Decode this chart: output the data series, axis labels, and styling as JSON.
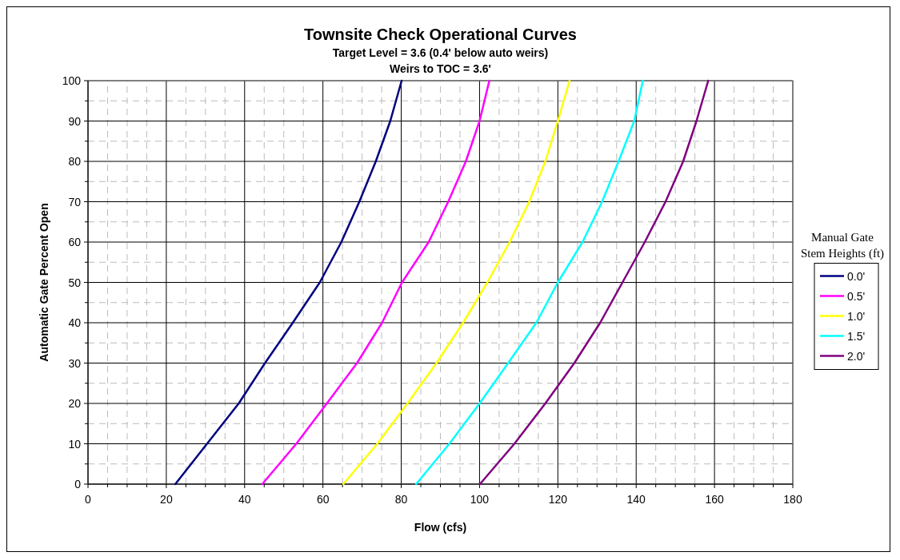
{
  "chart_data": {
    "type": "line",
    "title": "Townsite Check Operational Curves",
    "subtitle": "Target Level = 3.6 (0.4' below auto weirs)\nWeirs to TOC = 3.6'",
    "xlabel": "Flow (cfs)",
    "ylabel": "Automatic Gate Percent Open",
    "legend_title": "Manual Gate Stem Heights (ft)",
    "legend": "right",
    "grid": true,
    "line_style": "solid",
    "xlim": [
      0,
      180
    ],
    "xticks": [
      0,
      20,
      40,
      60,
      80,
      100,
      120,
      140,
      160,
      180
    ],
    "ylim": [
      0,
      100
    ],
    "yticks": [
      0,
      10,
      20,
      30,
      40,
      50,
      60,
      70,
      80,
      90,
      100
    ],
    "series": [
      {
        "name": "0.0'",
        "color": "#000080",
        "x": [
          22.3,
          30.4,
          38.5,
          45.2,
          52.3,
          59.2,
          64.7,
          69.3,
          73.5,
          77.2,
          80.1
        ],
        "values": [
          0,
          10,
          20,
          30,
          40,
          50,
          60,
          70,
          80,
          90,
          100
        ]
      },
      {
        "name": "0.5'",
        "color": "#ff00ff",
        "x": [
          44.5,
          53.2,
          61,
          68.7,
          75.1,
          80.2,
          87,
          92,
          96.5,
          100,
          102.5
        ],
        "values": [
          0,
          10,
          20,
          30,
          40,
          50,
          60,
          70,
          80,
          90,
          100
        ]
      },
      {
        "name": "1.0'",
        "color": "#ffff00",
        "x": [
          65.2,
          73.9,
          81.6,
          89,
          95.8,
          102,
          107.7,
          112.7,
          116.8,
          120,
          123
        ],
        "values": [
          0,
          10,
          20,
          30,
          40,
          50,
          60,
          70,
          80,
          90,
          100
        ]
      },
      {
        "name": "1.5'",
        "color": "#00ffff",
        "x": [
          83.8,
          92.3,
          100,
          107.3,
          114.5,
          120,
          126.3,
          131.3,
          135.5,
          139.5,
          141.7
        ],
        "values": [
          0,
          10,
          20,
          30,
          40,
          50,
          60,
          70,
          80,
          90,
          100
        ]
      },
      {
        "name": "2.0'",
        "color": "#800080",
        "x": [
          100.1,
          108.9,
          116.8,
          124.2,
          130.8,
          136.5,
          142.2,
          147.5,
          152,
          155.4,
          158.4
        ],
        "values": [
          0,
          10,
          20,
          30,
          40,
          50,
          60,
          70,
          80,
          90,
          100
        ]
      }
    ]
  }
}
